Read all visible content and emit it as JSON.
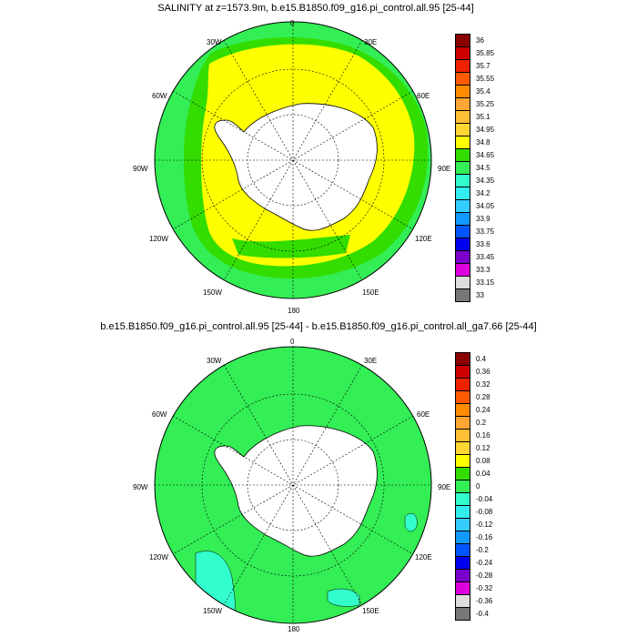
{
  "panels": [
    {
      "title": "SALINITY at z=1573.9m, b.e15.B1850.f09_g16.pi_control.all.95 [25-44]",
      "lon_labels": [
        "0",
        "30E",
        "60E",
        "90E",
        "120E",
        "150E",
        "180",
        "150W",
        "120W",
        "90W",
        "60W",
        "30W"
      ],
      "colorbar": {
        "labels": [
          "36",
          "35.85",
          "35.7",
          "35.55",
          "35.4",
          "35.25",
          "35.1",
          "34.95",
          "34.8",
          "34.65",
          "34.5",
          "34.35",
          "34.2",
          "34.05",
          "33.9",
          "33.75",
          "33.6",
          "33.45",
          "33.3",
          "33.15",
          "33"
        ],
        "colors": [
          "#8b0000",
          "#cc0000",
          "#ee2200",
          "#ff5a00",
          "#ff8c00",
          "#ffa533",
          "#ffbf33",
          "#ffd633",
          "#ffff00",
          "#33dd00",
          "#33ee55",
          "#33ffcc",
          "#33eeee",
          "#33ccff",
          "#1199ff",
          "#0055ff",
          "#0000ee",
          "#7a00cc",
          "#dd00dd",
          "#dddddd",
          "#777777"
        ]
      }
    },
    {
      "title": "b.e15.B1850.f09_g16.pi_control.all.95 [25-44] - b.e15.B1850.f09_g16.pi_control.all_ga7.66 [25-44]",
      "lon_labels": [
        "0",
        "30E",
        "60E",
        "90E",
        "120E",
        "150E",
        "180",
        "150W",
        "120W",
        "90W",
        "60W",
        "30W"
      ],
      "colorbar": {
        "labels": [
          "0.4",
          "0.36",
          "0.32",
          "0.28",
          "0.24",
          "0.2",
          "0.16",
          "0.12",
          "0.08",
          "0.04",
          "0",
          "-0.04",
          "-0.08",
          "-0.12",
          "-0.16",
          "-0.2",
          "-0.24",
          "-0.28",
          "-0.32",
          "-0.36",
          "-0.4"
        ],
        "colors": [
          "#8b0000",
          "#cc0000",
          "#ee2200",
          "#ff5a00",
          "#ff8c00",
          "#ffa533",
          "#ffbf33",
          "#ffd633",
          "#ffff00",
          "#33dd00",
          "#33ee55",
          "#33ffcc",
          "#33eeee",
          "#33ccff",
          "#1199ff",
          "#0055ff",
          "#0000ee",
          "#7a00cc",
          "#dd00dd",
          "#dddddd",
          "#777777"
        ]
      }
    }
  ]
}
